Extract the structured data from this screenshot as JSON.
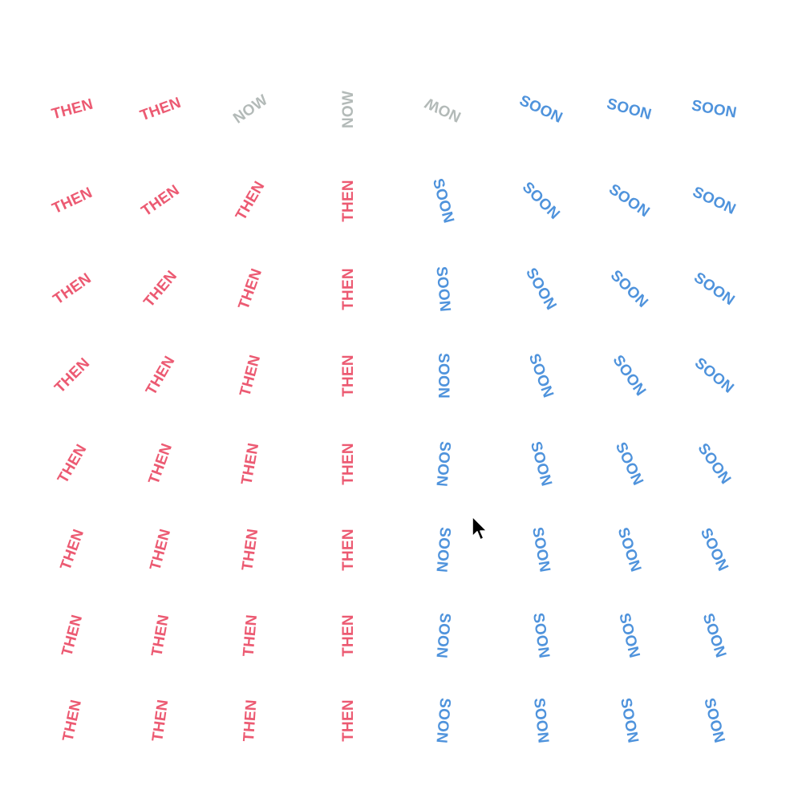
{
  "colors": {
    "then": "#ec5a72",
    "now": "#b3bab8",
    "soon": "#4f93dc",
    "background": "#ffffff"
  },
  "words": {
    "then": "THEN",
    "now": "NOW",
    "soon": "SOON"
  },
  "grid": {
    "rows": [
      [
        "then",
        "then",
        "now",
        "now",
        "now",
        "soon",
        "soon",
        "soon"
      ],
      [
        "then",
        "then",
        "then",
        "then",
        "soon",
        "soon",
        "soon",
        "soon"
      ],
      [
        "then",
        "then",
        "then",
        "then",
        "soon",
        "soon",
        "soon",
        "soon"
      ],
      [
        "then",
        "then",
        "then",
        "then",
        "soon",
        "soon",
        "soon",
        "soon"
      ],
      [
        "then",
        "then",
        "then",
        "then",
        "soon",
        "soon",
        "soon",
        "soon"
      ],
      [
        "then",
        "then",
        "then",
        "then",
        "soon",
        "soon",
        "soon",
        "soon"
      ],
      [
        "then",
        "then",
        "then",
        "then",
        "soon",
        "soon",
        "soon",
        "soon"
      ],
      [
        "then",
        "then",
        "then",
        "then",
        "soon",
        "soon",
        "soon",
        "soon"
      ]
    ]
  },
  "cursor": {
    "icon": "mouse-pointer-arrow-icon"
  }
}
